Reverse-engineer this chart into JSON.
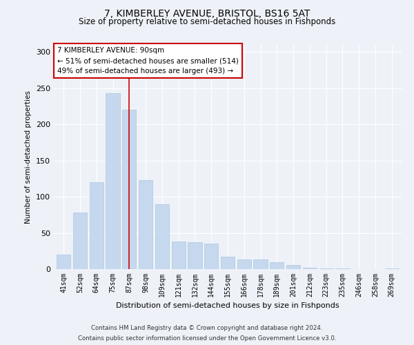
{
  "title": "7, KIMBERLEY AVENUE, BRISTOL, BS16 5AT",
  "subtitle": "Size of property relative to semi-detached houses in Fishponds",
  "xlabel": "Distribution of semi-detached houses by size in Fishponds",
  "ylabel": "Number of semi-detached properties",
  "categories": [
    "41sqm",
    "52sqm",
    "64sqm",
    "75sqm",
    "87sqm",
    "98sqm",
    "109sqm",
    "121sqm",
    "132sqm",
    "144sqm",
    "155sqm",
    "166sqm",
    "178sqm",
    "189sqm",
    "201sqm",
    "212sqm",
    "223sqm",
    "235sqm",
    "246sqm",
    "258sqm",
    "269sqm"
  ],
  "values": [
    20,
    78,
    120,
    243,
    220,
    123,
    90,
    38,
    37,
    35,
    17,
    13,
    13,
    10,
    6,
    2,
    1,
    1,
    0,
    0,
    1
  ],
  "bar_color": "#c5d8ee",
  "bar_edge_color": "#aec6df",
  "annotation_title": "7 KIMBERLEY AVENUE: 90sqm",
  "annotation_line1": "← 51% of semi-detached houses are smaller (514)",
  "annotation_line2": "49% of semi-detached houses are larger (493) →",
  "annotation_box_color": "#ffffff",
  "annotation_box_edge": "#cc0000",
  "vline_color": "#cc0000",
  "vline_x_index": 4,
  "footer1": "Contains HM Land Registry data © Crown copyright and database right 2024.",
  "footer2": "Contains public sector information licensed under the Open Government Licence v3.0.",
  "ylim": [
    0,
    310
  ],
  "background_color": "#eef2f8"
}
